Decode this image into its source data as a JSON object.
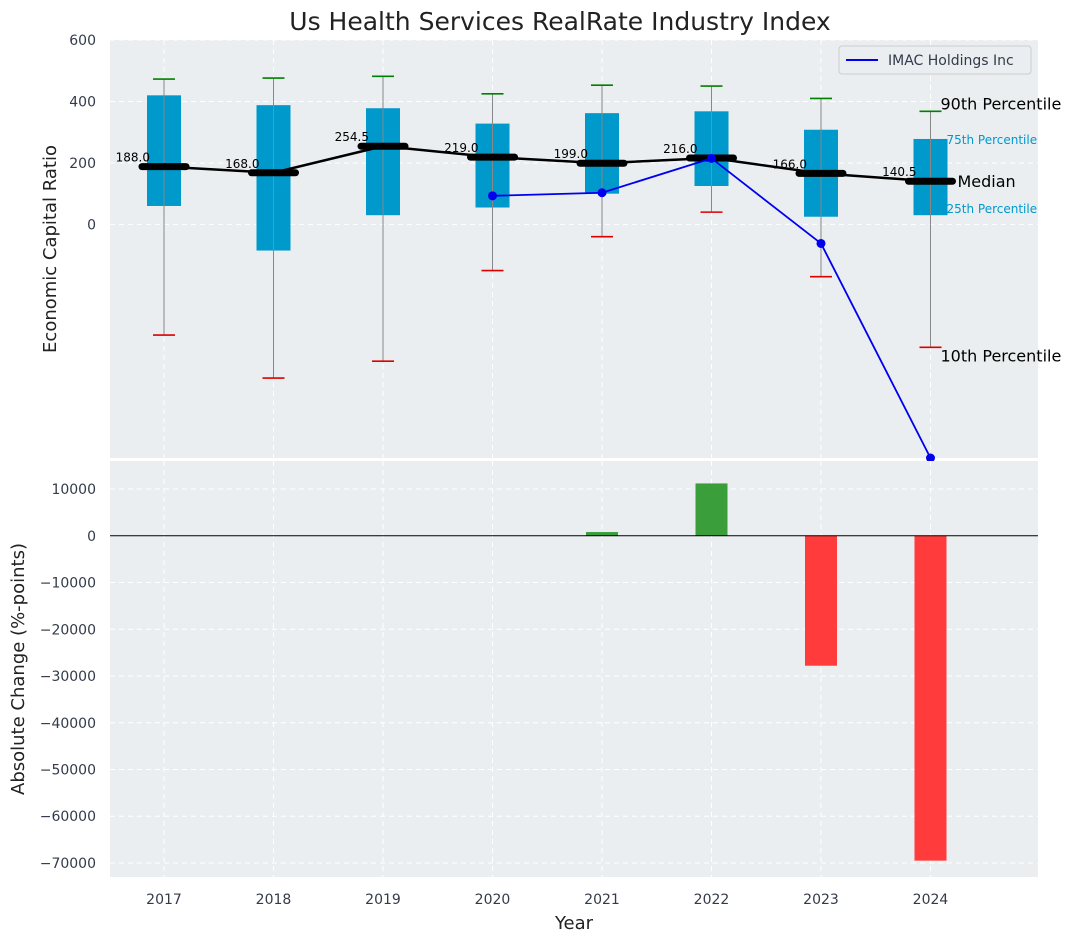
{
  "chart_data": [
    {
      "type": "box",
      "title": "Us Health Services RealRate Industry Index",
      "ylabel": "Economic Capital Ratio",
      "ylim": [
        -760,
        600
      ],
      "yticks": [
        0,
        200,
        400,
        600
      ],
      "grid": true,
      "legend_position": "top-right",
      "categories": [
        "2017",
        "2018",
        "2019",
        "2020",
        "2021",
        "2022",
        "2023",
        "2024"
      ],
      "p10": [
        -360,
        -500,
        -445,
        -150,
        -40,
        40,
        -170,
        -400
      ],
      "p25": [
        60,
        -85,
        30,
        55,
        100,
        125,
        25,
        30
      ],
      "median": [
        188.0,
        168.0,
        254.5,
        219.0,
        199.0,
        216.0,
        166.0,
        140.5
      ],
      "p75": [
        420,
        388,
        378,
        328,
        362,
        368,
        308,
        278
      ],
      "p90": [
        473,
        476,
        482,
        425,
        453,
        450,
        410,
        368
      ],
      "median_labels": [
        "188.0",
        "168.0",
        "254.5",
        "219.0",
        "199.0",
        "216.0",
        "166.0",
        "140.5"
      ],
      "series": [
        {
          "name": "IMAC Holdings Inc",
          "color": "#0000ee",
          "x": [
            "2020",
            "2021",
            "2022",
            "2023",
            "2024"
          ],
          "values": [
            93,
            103,
            215,
            -62,
            -760
          ]
        }
      ],
      "annotations": {
        "p90": "90th Percentile",
        "p75": "75th Percentile",
        "median": "Median",
        "p25": "25th Percentile",
        "p10": "10th Percentile"
      }
    },
    {
      "type": "bar",
      "xlabel": "Year",
      "ylabel": "Absolute Change (%-points)",
      "ylim": [
        -73000,
        16000
      ],
      "yticks": [
        10000,
        0,
        -10000,
        -20000,
        -30000,
        -40000,
        -50000,
        -60000,
        -70000
      ],
      "ytick_labels": [
        "10000",
        "0",
        "−10000",
        "−20000",
        "−30000",
        "−40000",
        "−50000",
        "−60000",
        "−70000"
      ],
      "grid": true,
      "categories": [
        "2021",
        "2022",
        "2023",
        "2024"
      ],
      "values": [
        800,
        11200,
        -27800,
        -69500
      ]
    }
  ],
  "colors": {
    "background": "#eaeef0",
    "box": "#0099cc",
    "median": "#000000",
    "whisker": "#888888",
    "p90_cap": "#008000",
    "p10_cap": "#dd0000",
    "positive": "#3a9e3a",
    "negative": "#ff3b3b",
    "text": "#333b4a"
  }
}
